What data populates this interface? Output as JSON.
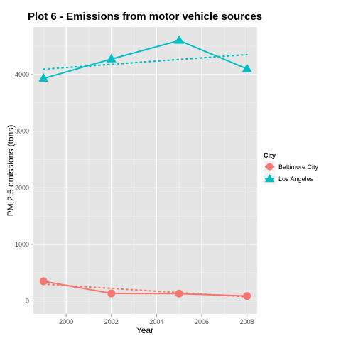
{
  "chart_data": {
    "type": "line",
    "title": "Plot 6 - Emissions from motor vehicle sources",
    "xlabel": "Year",
    "ylabel": "PM 2.5 emissions (tons)",
    "x_ticks": [
      2000,
      2002,
      2004,
      2006,
      2008
    ],
    "y_ticks": [
      0,
      1000,
      2000,
      3000,
      4000
    ],
    "xlim": [
      1998.55,
      2008.45
    ],
    "ylim": [
      -230,
      4840
    ],
    "grid": true,
    "legend_title": "City",
    "legend_position": "right",
    "series": [
      {
        "name": "Baltimore City",
        "color": "#F8766D",
        "marker": "circle",
        "x": [
          1999,
          2002,
          2005,
          2008
        ],
        "values": [
          346.8,
          134.3,
          130.4,
          88.3
        ],
        "trend": [
          [
            1999,
            297
          ],
          [
            2008,
            73
          ]
        ]
      },
      {
        "name": "Los Angeles",
        "color": "#00BFC4",
        "marker": "triangle",
        "x": [
          1999,
          2002,
          2005,
          2008
        ],
        "values": [
          3931,
          4274,
          4601,
          4101
        ],
        "trend": [
          [
            1999,
            4095
          ],
          [
            2008,
            4352
          ]
        ]
      }
    ]
  }
}
